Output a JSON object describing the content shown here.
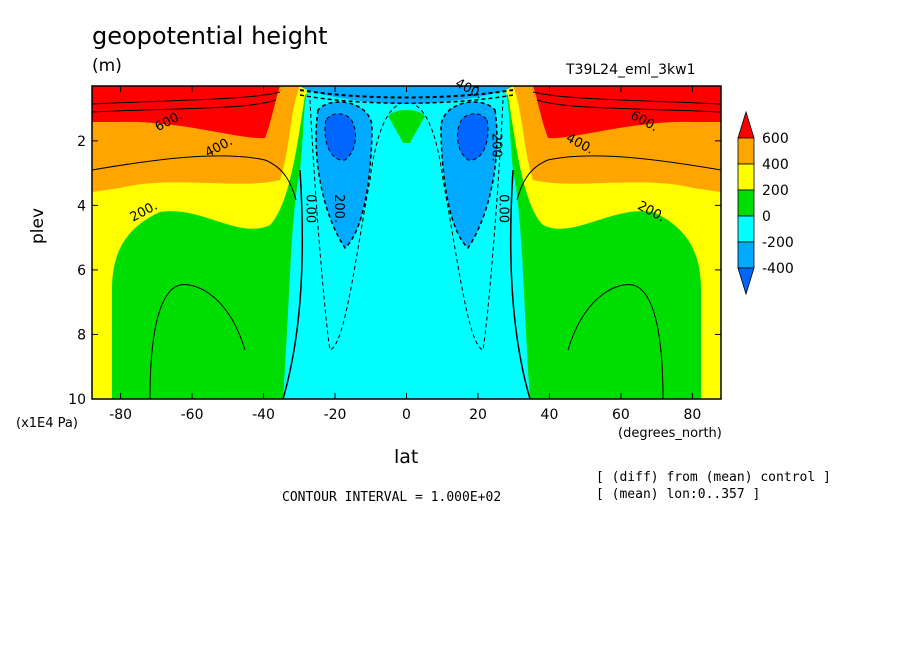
{
  "chart_data": {
    "type": "heatmap",
    "title": "geopotential height",
    "units": "(m)",
    "run_name": "T39L24_eml_3kw1",
    "xlabel": "lat",
    "x_units": "(degrees_north)",
    "ylabel": "plev",
    "y_units": "(x1E4 Pa)",
    "xlim": [
      -88,
      88
    ],
    "ylim": [
      10,
      0.3
    ],
    "x_ticks": [
      -80,
      -60,
      -40,
      -20,
      0,
      20,
      40,
      60,
      80
    ],
    "x_tick_labels": [
      "-80",
      "-60",
      "-40",
      "-20",
      "0",
      "20",
      "40",
      "60",
      "80"
    ],
    "y_ticks": [
      2,
      4,
      6,
      8,
      10
    ],
    "y_tick_labels": [
      "2",
      "4",
      "6",
      "8",
      "10"
    ],
    "contour_interval_text": "CONTOUR INTERVAL = 1.000E+02",
    "notes": [
      "[ (diff) from (mean) control ]",
      "[ (mean) lon:0..357 ]"
    ],
    "colorbar": {
      "levels": [
        -400,
        -200,
        0,
        200,
        400,
        600
      ],
      "labels": [
        "600",
        "400",
        "200",
        "0",
        "-200",
        "-400"
      ],
      "colors": [
        "#ff0000",
        "#ffa500",
        "#ffff00",
        "#00dd00",
        "#00ffff",
        "#00aaff",
        "#0066ff"
      ]
    },
    "contour_labels": [
      {
        "text": "600.",
        "lat": -66,
        "p": 1.5
      },
      {
        "text": "400.",
        "lat": -52,
        "p": 2.3
      },
      {
        "text": "200.",
        "lat": -73,
        "p": 4.3
      },
      {
        "text": "0.00",
        "lat": -28,
        "p": 4.1
      },
      {
        "text": "200.",
        "lat": -20,
        "p": 4.1
      },
      {
        "text": "400.",
        "lat": 17,
        "p": 0.5
      },
      {
        "text": "200.",
        "lat": 24,
        "p": 2.2
      },
      {
        "text": "0.00",
        "lat": 26,
        "p": 4.1
      },
      {
        "text": "400.",
        "lat": 48,
        "p": 2.2
      },
      {
        "text": "600.",
        "lat": 66,
        "p": 1.5
      },
      {
        "text": "200.",
        "lat": 68,
        "p": 4.3
      }
    ],
    "field_regions": [
      {
        "name": "positive >600 (red)",
        "value": 600,
        "lat_range": [
          -88,
          -47
        ],
        "p_range": [
          0.3,
          1.8
        ]
      },
      {
        "name": "positive >600 (red)",
        "value": 600,
        "lat_range": [
          47,
          88
        ],
        "p_range": [
          0.3,
          1.8
        ]
      },
      {
        "name": "negative minimum (blue)",
        "value": -400,
        "lat_range": [
          -22,
          -14
        ],
        "p_range": [
          1.0,
          2.4
        ]
      },
      {
        "name": "negative minimum (blue)",
        "value": -400,
        "lat_range": [
          14,
          22
        ],
        "p_range": [
          1.0,
          2.4
        ]
      },
      {
        "name": "equatorial positive bump (green)",
        "value": 100,
        "lat_range": [
          -4,
          4
        ],
        "p_range": [
          1.2,
          2.0
        ]
      }
    ]
  }
}
